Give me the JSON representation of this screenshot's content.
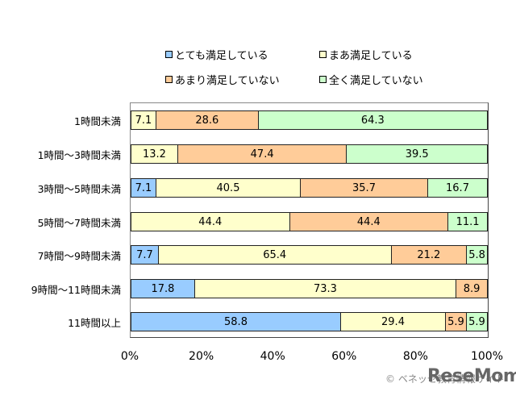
{
  "chart_data": {
    "type": "bar",
    "orientation": "horizontal",
    "stacked": "100%",
    "categories": [
      "1時間未満",
      "1時間～3時間未満",
      "3時間～5時間未満",
      "5時間～7時間未満",
      "7時間～9時間未満",
      "9時間～11時間未満",
      "11時間以上"
    ],
    "series": [
      {
        "name": "とても満足している",
        "color": "#99ccff",
        "values": [
          0,
          0,
          7.1,
          0,
          7.7,
          17.8,
          58.8
        ]
      },
      {
        "name": "まあ満足している",
        "color": "#ffffcc",
        "values": [
          7.1,
          13.2,
          40.5,
          44.4,
          65.4,
          73.3,
          29.4
        ]
      },
      {
        "name": "あまり満足していない",
        "color": "#ffcc99",
        "values": [
          28.6,
          47.4,
          35.7,
          44.4,
          21.2,
          8.9,
          5.9
        ]
      },
      {
        "name": "全く満足していない",
        "color": "#ccffcc",
        "values": [
          64.3,
          39.5,
          16.7,
          11.1,
          5.8,
          0,
          5.9
        ]
      }
    ],
    "labels": [
      [
        "",
        "7.1",
        "28.6",
        "64.3"
      ],
      [
        "",
        "13.2",
        "47.4",
        "39.5"
      ],
      [
        "7.1",
        "40.5",
        "35.7",
        "16.7"
      ],
      [
        "",
        "44.4",
        "44.4",
        "11.1"
      ],
      [
        "7.7",
        "65.4",
        "21.2",
        "5.8"
      ],
      [
        "17.8",
        "73.3",
        "8.9",
        ""
      ],
      [
        "58.8",
        "29.4",
        "5.9",
        "5.9"
      ]
    ],
    "xticks": [
      "0%",
      "20%",
      "40%",
      "60%",
      "80%",
      "100%"
    ],
    "xlim": [
      0,
      100
    ],
    "title": "",
    "xlabel": "",
    "ylabel": "",
    "grid": false,
    "legend_position": "top"
  },
  "legend": [
    {
      "label": "とても満足している",
      "color": "#99ccff"
    },
    {
      "label": "まあ満足している",
      "color": "#ffffcc"
    },
    {
      "label": "あまり満足していない",
      "color": "#ffcc99"
    },
    {
      "label": "全く満足していない",
      "color": "#ccffcc"
    }
  ],
  "credit": "© ベネッセ教育情報サイト",
  "logo": "ReseMom"
}
